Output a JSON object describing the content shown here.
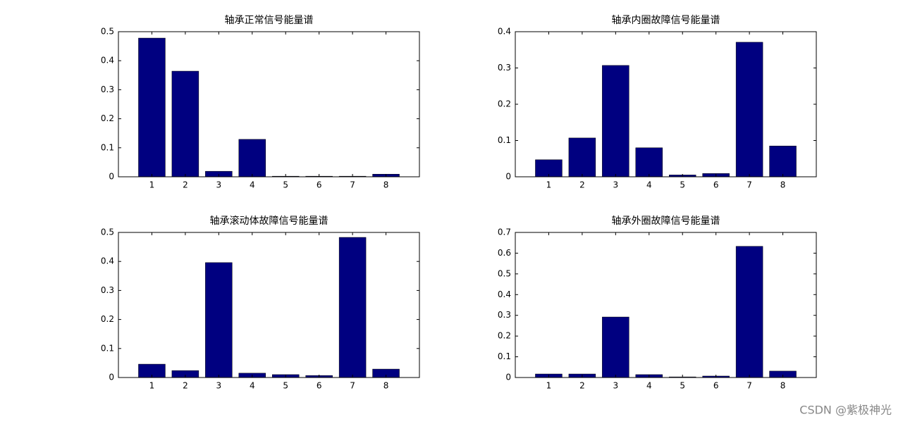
{
  "chart_data": [
    {
      "type": "bar",
      "title": "轴承正常信号能量谱",
      "x": [
        1,
        2,
        3,
        4,
        5,
        6,
        7,
        8
      ],
      "values": [
        0.478,
        0.364,
        0.019,
        0.129,
        0.002,
        0.002,
        0.002,
        0.009
      ],
      "color": "#000080",
      "xlim": [
        0,
        9
      ],
      "xticks": [
        1,
        2,
        3,
        4,
        5,
        6,
        7,
        8
      ],
      "ylim": [
        0,
        0.5
      ],
      "yticks": [
        0,
        0.1,
        0.2,
        0.3,
        0.4,
        0.5
      ],
      "grid": false
    },
    {
      "type": "bar",
      "title": "轴承内圈故障信号能量谱",
      "x": [
        1,
        2,
        3,
        4,
        5,
        6,
        7,
        8
      ],
      "values": [
        0.047,
        0.107,
        0.307,
        0.08,
        0.005,
        0.009,
        0.371,
        0.085
      ],
      "color": "#000080",
      "xlim": [
        0,
        9
      ],
      "xticks": [
        1,
        2,
        3,
        4,
        5,
        6,
        7,
        8
      ],
      "ylim": [
        0,
        0.4
      ],
      "yticks": [
        0,
        0.1,
        0.2,
        0.3,
        0.4
      ],
      "grid": false
    },
    {
      "type": "bar",
      "title": "轴承滚动体故障信号能量谱",
      "x": [
        1,
        2,
        3,
        4,
        5,
        6,
        7,
        8
      ],
      "values": [
        0.046,
        0.024,
        0.396,
        0.015,
        0.01,
        0.007,
        0.483,
        0.029
      ],
      "color": "#000080",
      "xlim": [
        0,
        9
      ],
      "xticks": [
        1,
        2,
        3,
        4,
        5,
        6,
        7,
        8
      ],
      "ylim": [
        0,
        0.5
      ],
      "yticks": [
        0,
        0.1,
        0.2,
        0.3,
        0.4,
        0.5
      ],
      "grid": false
    },
    {
      "type": "bar",
      "title": "轴承外圈故障信号能量谱",
      "x": [
        1,
        2,
        3,
        4,
        5,
        6,
        7,
        8
      ],
      "values": [
        0.017,
        0.017,
        0.292,
        0.014,
        0.003,
        0.007,
        0.633,
        0.031
      ],
      "color": "#000080",
      "xlim": [
        0,
        9
      ],
      "xticks": [
        1,
        2,
        3,
        4,
        5,
        6,
        7,
        8
      ],
      "ylim": [
        0,
        0.7
      ],
      "yticks": [
        0,
        0.1,
        0.2,
        0.3,
        0.4,
        0.5,
        0.6,
        0.7
      ],
      "grid": false
    }
  ],
  "watermark": "CSDN @紫极神光"
}
